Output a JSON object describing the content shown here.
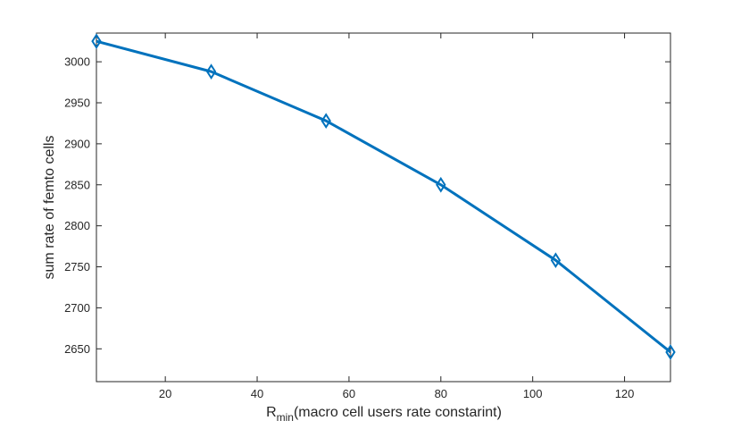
{
  "chart_data": {
    "type": "line",
    "title": "",
    "xlabel": {
      "main": "R",
      "subscript": "min",
      "rest": "(macro cell users rate constarint)"
    },
    "ylabel": "sum rate of femto cells",
    "xlim": [
      5,
      130
    ],
    "ylim": [
      2610,
      3035
    ],
    "xticks": [
      20,
      40,
      60,
      80,
      100,
      120
    ],
    "yticks": [
      2650,
      2700,
      2750,
      2800,
      2850,
      2900,
      2950,
      3000
    ],
    "grid": false,
    "legend": "none",
    "series": [
      {
        "x": [
          5,
          30,
          55,
          80,
          105,
          130
        ],
        "y": [
          3025,
          2988,
          2928,
          2850,
          2758,
          2646
        ],
        "color": "#0072BD",
        "marker": "diamond"
      }
    ]
  }
}
